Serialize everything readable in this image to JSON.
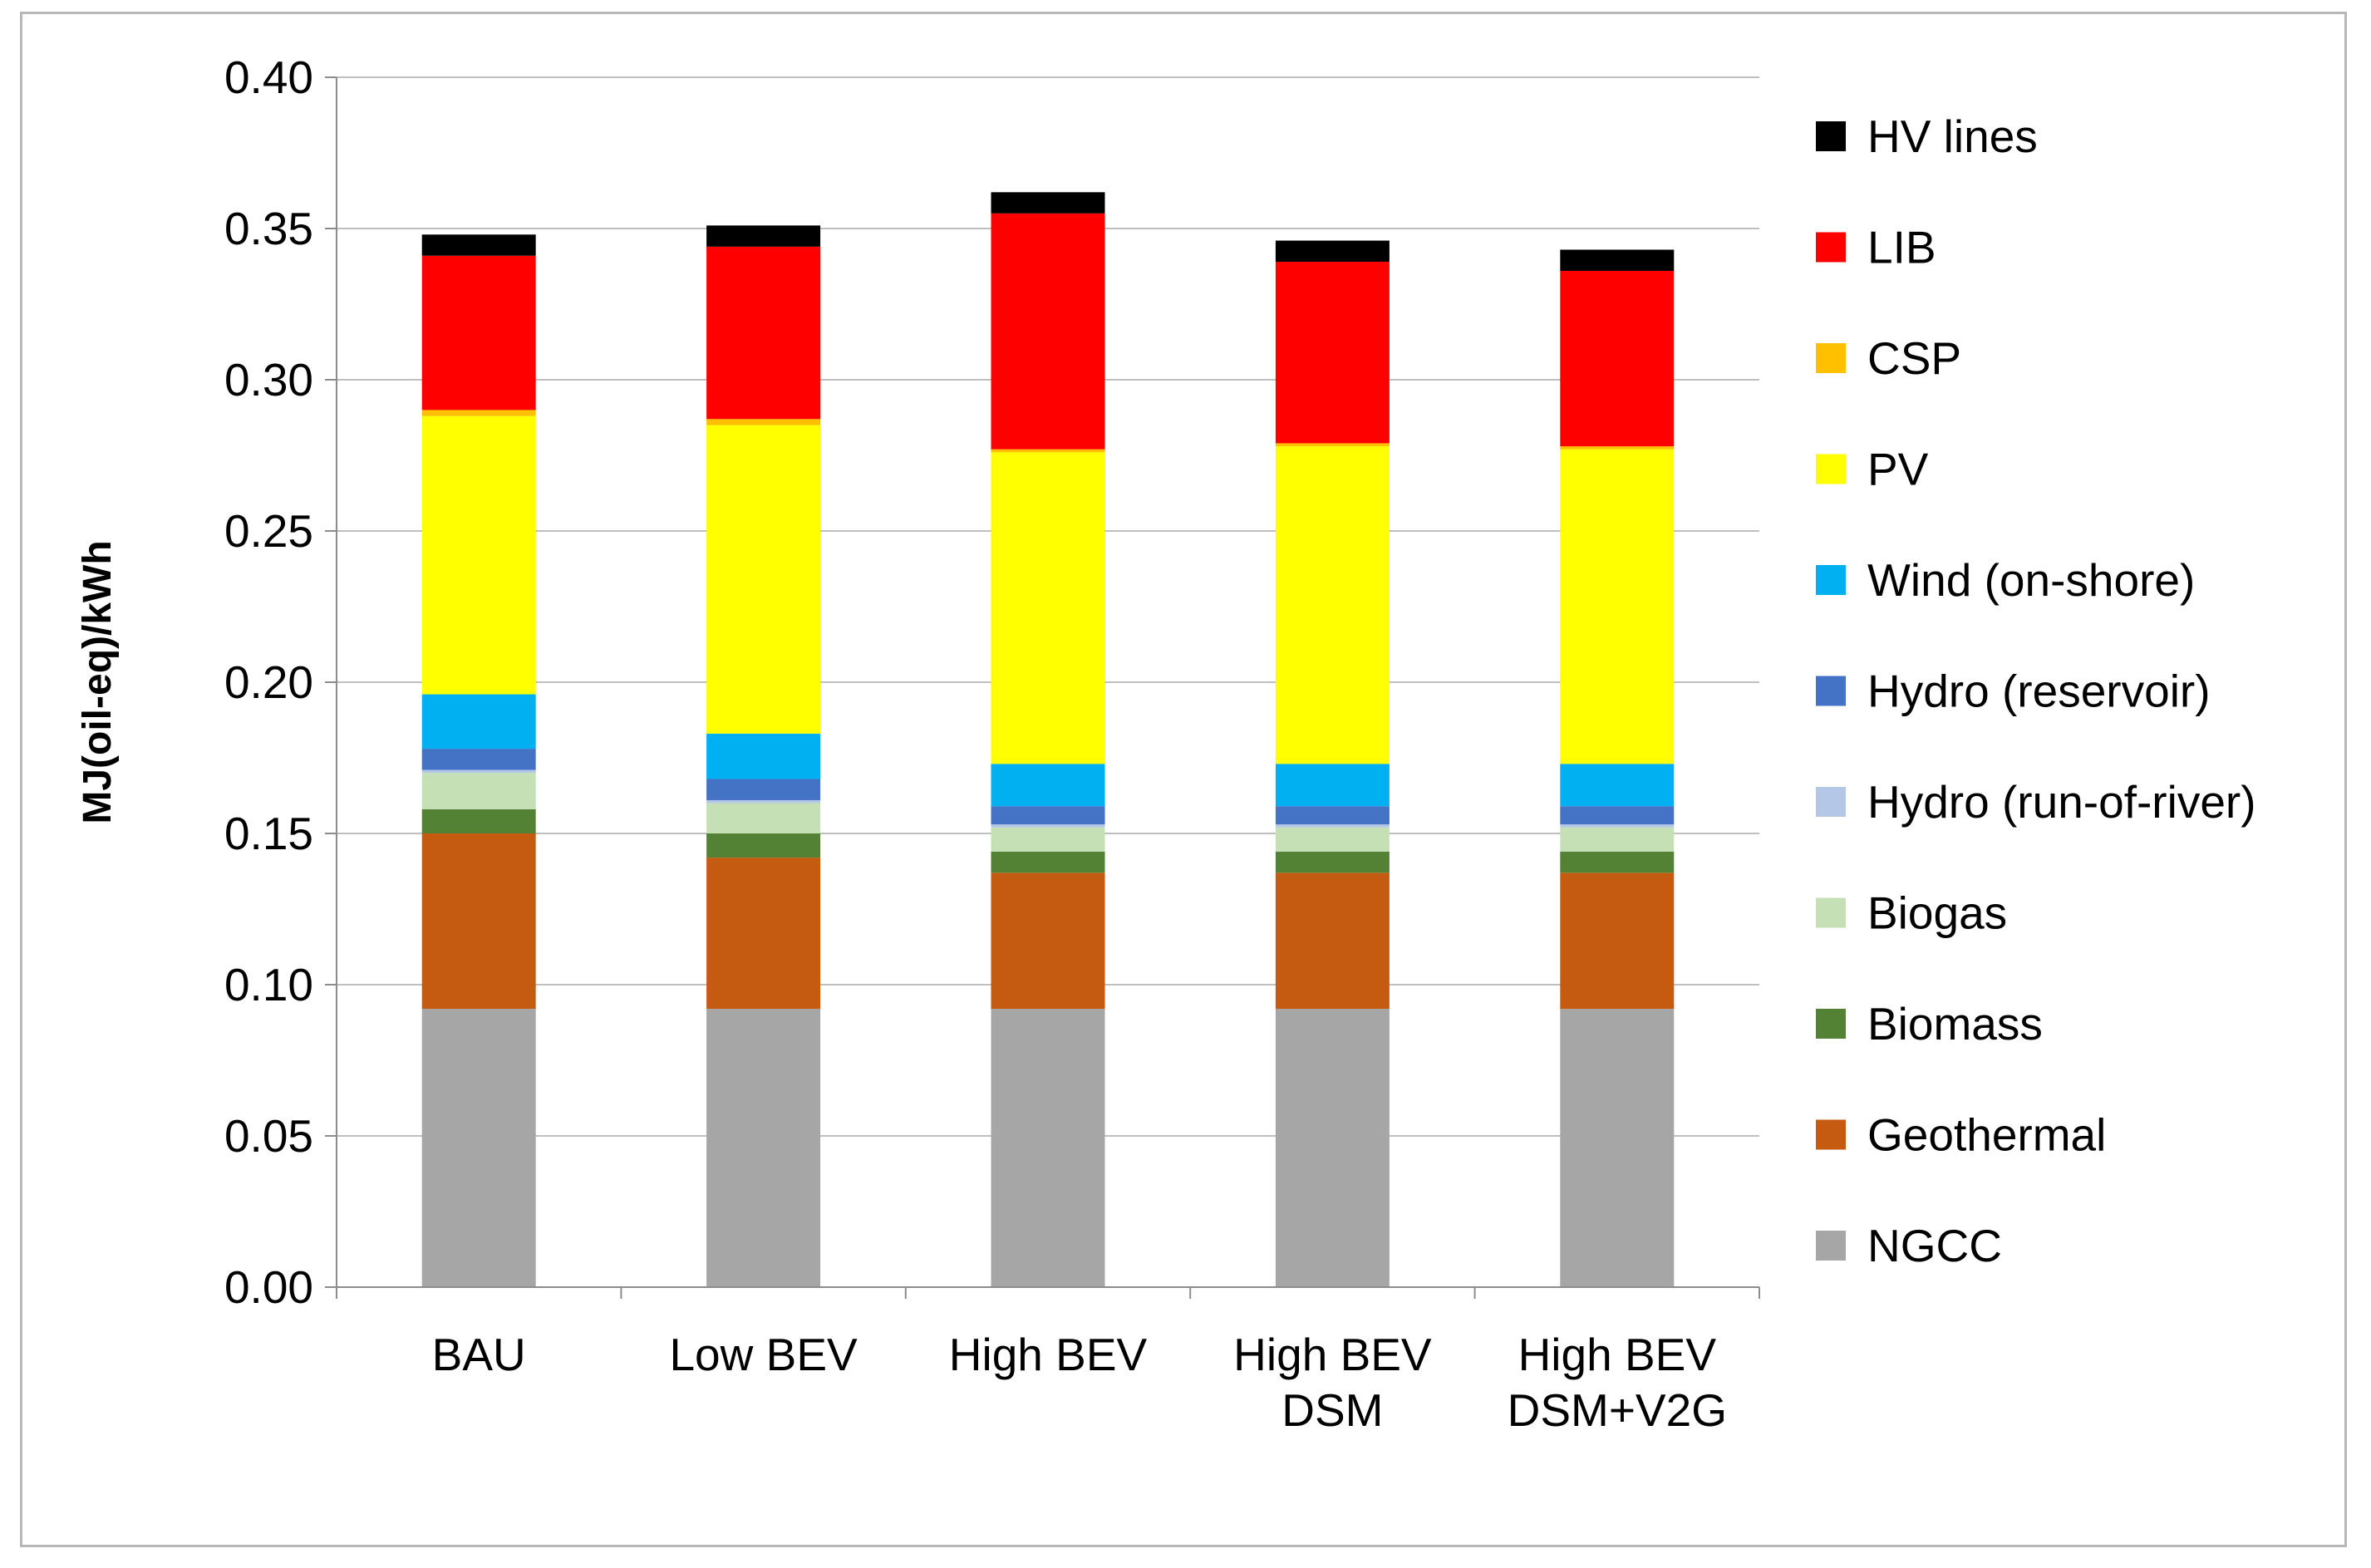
{
  "chart_data": {
    "type": "bar",
    "stacked": true,
    "title": "",
    "xlabel": "",
    "ylabel": "MJ(oil-eq)/kWh",
    "ylim": [
      0,
      0.4
    ],
    "yticks": [
      "0.00",
      "0.05",
      "0.10",
      "0.15",
      "0.20",
      "0.25",
      "0.30",
      "0.35",
      "0.40"
    ],
    "grid": "horizontal",
    "legend_position": "right",
    "categories": [
      [
        "BAU"
      ],
      [
        "Low BEV"
      ],
      [
        "High BEV"
      ],
      [
        "High BEV",
        "DSM"
      ],
      [
        "High BEV",
        "DSM+V2G"
      ]
    ],
    "series": [
      {
        "name": "NGCC",
        "color": "#a6a6a6",
        "values": [
          0.092,
          0.092,
          0.092,
          0.092,
          0.092
        ]
      },
      {
        "name": "Geothermal",
        "color": "#c55a11",
        "values": [
          0.058,
          0.05,
          0.045,
          0.045,
          0.045
        ]
      },
      {
        "name": "Biomass",
        "color": "#548235",
        "values": [
          0.008,
          0.008,
          0.007,
          0.007,
          0.007
        ]
      },
      {
        "name": "Biogas",
        "color": "#c5e0b4",
        "values": [
          0.012,
          0.01,
          0.008,
          0.008,
          0.008
        ]
      },
      {
        "name": "Hydro (run-of-river)",
        "color": "#b4c7e7",
        "values": [
          0.001,
          0.001,
          0.001,
          0.001,
          0.001
        ]
      },
      {
        "name": "Hydro (reservoir)",
        "color": "#4472c4",
        "values": [
          0.007,
          0.007,
          0.006,
          0.006,
          0.006
        ]
      },
      {
        "name": "Wind (on-shore)",
        "color": "#00b0f0",
        "values": [
          0.018,
          0.015,
          0.014,
          0.014,
          0.014
        ]
      },
      {
        "name": "PV",
        "color": "#ffff00",
        "values": [
          0.092,
          0.102,
          0.103,
          0.105,
          0.104
        ]
      },
      {
        "name": "CSP",
        "color": "#ffc000",
        "values": [
          0.002,
          0.002,
          0.001,
          0.001,
          0.001
        ]
      },
      {
        "name": "LIB",
        "color": "#ff0000",
        "values": [
          0.051,
          0.057,
          0.078,
          0.06,
          0.058
        ]
      },
      {
        "name": "HV lines",
        "color": "#000000",
        "values": [
          0.007,
          0.007,
          0.007,
          0.007,
          0.007
        ]
      }
    ]
  }
}
